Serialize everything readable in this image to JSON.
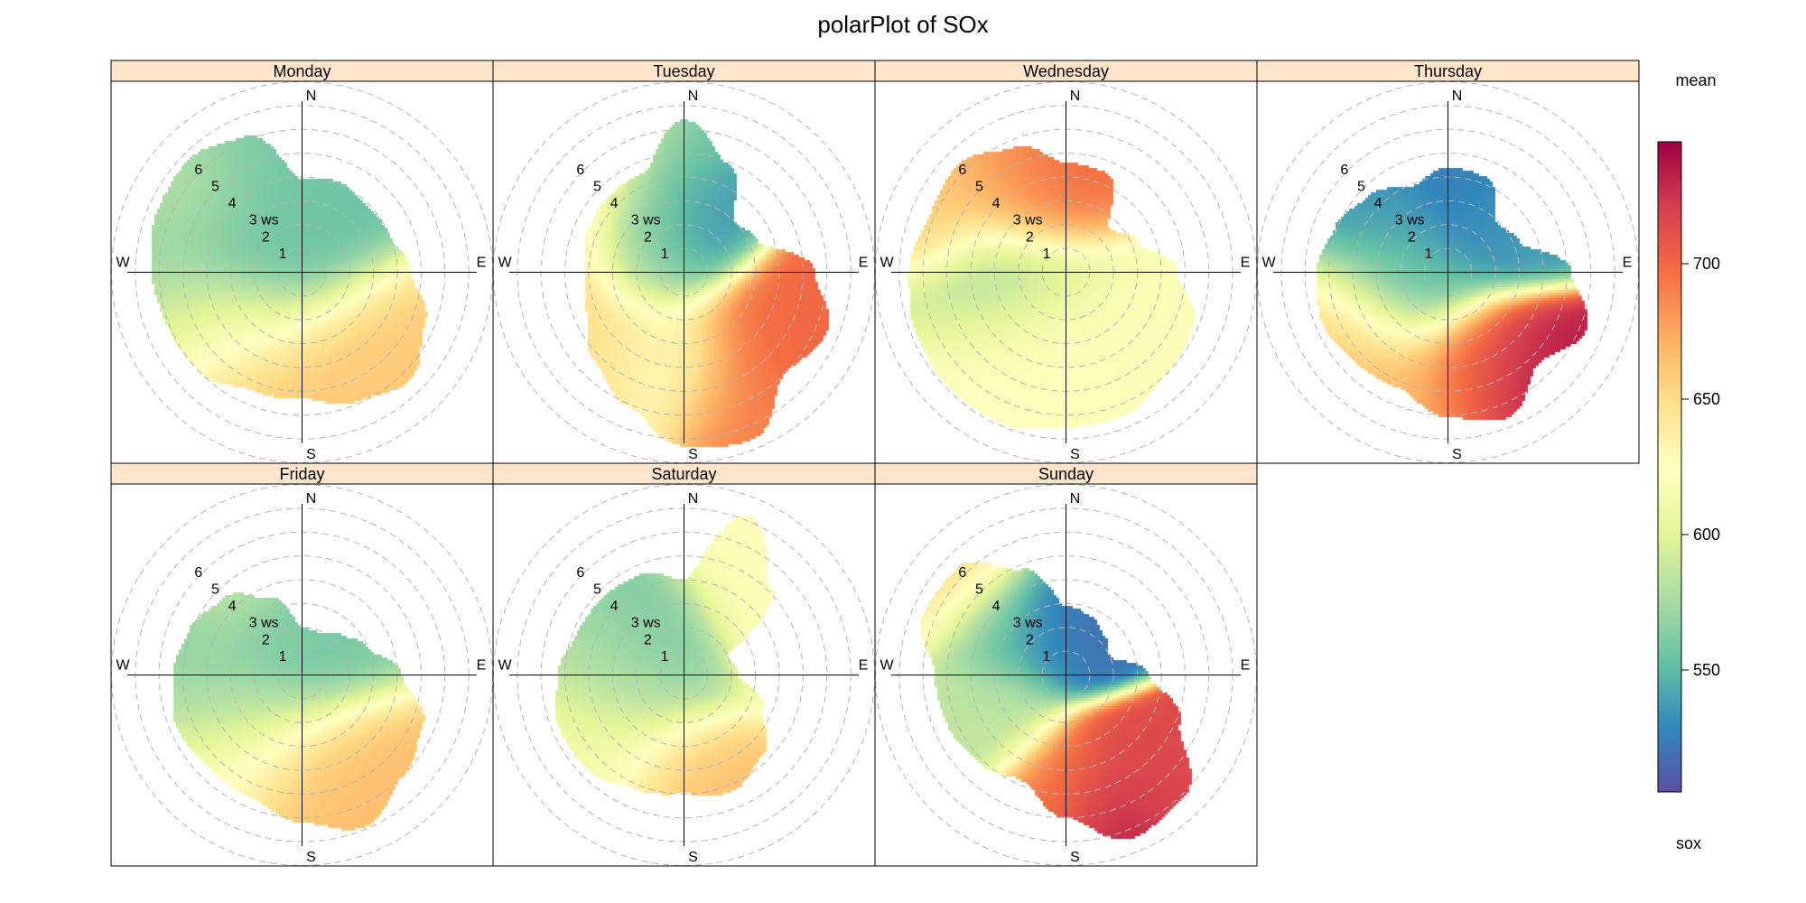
{
  "chart_data": {
    "type": "heatmap",
    "subtype": "polar",
    "title": "polarPlot of SOx",
    "legend": {
      "title_top": "mean",
      "title_bottom": "sox",
      "ticks": [
        550,
        600,
        650,
        700
      ],
      "tick_labels": [
        "550",
        "600",
        "650",
        "700"
      ],
      "range": [
        505,
        745
      ],
      "colors": [
        "#5e4fa2",
        "#3288bd",
        "#66c2a5",
        "#abdda4",
        "#e6f598",
        "#ffffbf",
        "#fee08b",
        "#fdae61",
        "#f46d43",
        "#d53e4f",
        "#9e0142"
      ]
    },
    "radial_axis": {
      "label": "ws",
      "ticks": [
        1,
        2,
        3,
        4,
        5,
        6
      ],
      "tick_labels": [
        "1",
        "2",
        "3 ws",
        "4",
        "5",
        "6"
      ],
      "max_ring": 8
    },
    "compass": [
      "N",
      "E",
      "S",
      "W"
    ],
    "strip_color": "#ffe5cc",
    "panels": [
      {
        "label": "Monday",
        "shape": [
          3.9,
          4.1,
          3.9,
          4.0,
          4.6,
          5.6,
          6.4,
          5.9,
          5.3,
          5.4,
          6.0,
          6.1,
          6.3,
          6.6,
          6.7,
          6.2
        ],
        "blobs": [
          {
            "dir": 270,
            "ws": 2.6,
            "value": 548,
            "spread": 2.2
          },
          {
            "dir": 315,
            "ws": 2.8,
            "value": 560,
            "spread": 1.8
          },
          {
            "dir": 300,
            "ws": 5.0,
            "value": 585,
            "spread": 1.5
          },
          {
            "dir": 250,
            "ws": 4.5,
            "value": 595,
            "spread": 1.6
          },
          {
            "dir": 200,
            "ws": 5.0,
            "value": 660,
            "spread": 2.0
          },
          {
            "dir": 165,
            "ws": 5.0,
            "value": 660,
            "spread": 2.0
          },
          {
            "dir": 230,
            "ws": 4.0,
            "value": 640,
            "spread": 1.5
          }
        ]
      },
      {
        "label": "Tuesday",
        "shape": [
          6.4,
          4.9,
          3.0,
          3.4,
          5.5,
          6.5,
          6.0,
          7.6,
          7.3,
          6.1,
          5.3,
          4.4,
          4.1,
          4.4,
          4.5,
          4.5
        ],
        "blobs": [
          {
            "dir": 10,
            "ws": 1.5,
            "value": 535,
            "spread": 1.2
          },
          {
            "dir": 320,
            "ws": 2.8,
            "value": 560,
            "spread": 1.5
          },
          {
            "dir": 295,
            "ws": 1.5,
            "value": 570,
            "spread": 1.2
          },
          {
            "dir": 135,
            "ws": 4.5,
            "value": 700,
            "spread": 1.6
          },
          {
            "dir": 160,
            "ws": 6.5,
            "value": 690,
            "spread": 1.5
          },
          {
            "dir": 230,
            "ws": 5.0,
            "value": 650,
            "spread": 2.0
          },
          {
            "dir": 190,
            "ws": 4.0,
            "value": 625,
            "spread": 1.8
          },
          {
            "dir": 275,
            "ws": 5.5,
            "value": 650,
            "spread": 1.8
          },
          {
            "dir": 305,
            "ws": 5.5,
            "value": 640,
            "spread": 1.5
          }
        ]
      },
      {
        "label": "Wednesday",
        "shape": [
          4.6,
          4.5,
          2.6,
          3.3,
          4.7,
          5.8,
          6.0,
          6.5,
          6.5,
          6.9,
          6.9,
          6.8,
          6.6,
          6.2,
          6.4,
          5.7
        ],
        "blobs": [
          {
            "dir": 265,
            "ws": 2.5,
            "value": 575,
            "spread": 1.8
          },
          {
            "dir": 345,
            "ws": 3.5,
            "value": 700,
            "spread": 1.4
          },
          {
            "dir": 325,
            "ws": 4.5,
            "value": 680,
            "spread": 1.5
          },
          {
            "dir": 300,
            "ws": 6.0,
            "value": 660,
            "spread": 1.5
          },
          {
            "dir": 205,
            "ws": 4.0,
            "value": 625,
            "spread": 2.0
          },
          {
            "dir": 170,
            "ws": 4.0,
            "value": 620,
            "spread": 2.0
          }
        ]
      },
      {
        "label": "Thursday",
        "shape": [
          4.4,
          4.3,
          2.9,
          3.3,
          5.2,
          6.3,
          5.4,
          6.6,
          6.1,
          5.3,
          5.4,
          5.7,
          5.5,
          5.1,
          4.6,
          3.9
        ],
        "blobs": [
          {
            "dir": 300,
            "ws": 3.0,
            "value": 535,
            "spread": 2.2
          },
          {
            "dir": 15,
            "ws": 3.5,
            "value": 520,
            "spread": 1.5
          },
          {
            "dir": 40,
            "ws": 3.5,
            "value": 540,
            "spread": 1.4
          },
          {
            "dir": 265,
            "ws": 2.0,
            "value": 560,
            "spread": 1.5
          },
          {
            "dir": 145,
            "ws": 5.5,
            "value": 735,
            "spread": 1.4
          },
          {
            "dir": 165,
            "ws": 4.5,
            "value": 700,
            "spread": 1.5
          },
          {
            "dir": 210,
            "ws": 5.5,
            "value": 665,
            "spread": 2.0
          },
          {
            "dir": 245,
            "ws": 5.0,
            "value": 660,
            "spread": 1.6
          }
        ]
      },
      {
        "label": "Friday",
        "shape": [
          2.0,
          1.9,
          2.4,
          3.0,
          4.2,
          5.5,
          6.0,
          6.9,
          6.2,
          5.6,
          5.5,
          5.7,
          5.4,
          5.1,
          4.6,
          3.5
        ],
        "blobs": [
          {
            "dir": 290,
            "ws": 2.5,
            "value": 560,
            "spread": 2.0
          },
          {
            "dir": 345,
            "ws": 1.8,
            "value": 558,
            "spread": 1.2
          },
          {
            "dir": 260,
            "ws": 4.0,
            "value": 570,
            "spread": 1.7
          },
          {
            "dir": 175,
            "ws": 5.5,
            "value": 665,
            "spread": 1.8
          },
          {
            "dir": 220,
            "ws": 4.5,
            "value": 625,
            "spread": 2.0
          },
          {
            "dir": 320,
            "ws": 4.5,
            "value": 590,
            "spread": 1.5
          }
        ]
      },
      {
        "label": "Saturday",
        "shape": [
          4.0,
          7.2,
          5.2,
          2.0,
          2.3,
          3.6,
          4.7,
          5.3,
          5.0,
          5.2,
          5.7,
          5.7,
          5.3,
          4.8,
          4.7,
          4.6
        ],
        "blobs": [
          {
            "dir": 300,
            "ws": 2.0,
            "value": 560,
            "spread": 1.6
          },
          {
            "dir": 270,
            "ws": 3.0,
            "value": 580,
            "spread": 1.6
          },
          {
            "dir": 180,
            "ws": 5.0,
            "value": 665,
            "spread": 1.5
          },
          {
            "dir": 45,
            "ws": 6.0,
            "value": 620,
            "spread": 2.0
          },
          {
            "dir": 225,
            "ws": 4.5,
            "value": 615,
            "spread": 2.0
          }
        ]
      },
      {
        "label": "Sunday",
        "shape": [
          2.9,
          2.7,
          2.3,
          2.0,
          3.5,
          5.2,
          7.1,
          7.4,
          6.0,
          4.8,
          5.2,
          5.4,
          5.5,
          6.5,
          6.4,
          4.8
        ],
        "blobs": [
          {
            "dir": 15,
            "ws": 2.3,
            "value": 520,
            "spread": 1.2
          },
          {
            "dir": 330,
            "ws": 2.5,
            "value": 530,
            "spread": 1.3
          },
          {
            "dir": 300,
            "ws": 3.5,
            "value": 548,
            "spread": 1.3
          },
          {
            "dir": 150,
            "ws": 5.5,
            "value": 715,
            "spread": 1.4
          },
          {
            "dir": 165,
            "ws": 6.5,
            "value": 740,
            "spread": 1.3
          },
          {
            "dir": 180,
            "ws": 5.5,
            "value": 690,
            "spread": 1.5
          },
          {
            "dir": 250,
            "ws": 4.0,
            "value": 585,
            "spread": 1.5
          },
          {
            "dir": 310,
            "ws": 6.0,
            "value": 650,
            "spread": 1.6
          }
        ]
      }
    ]
  }
}
